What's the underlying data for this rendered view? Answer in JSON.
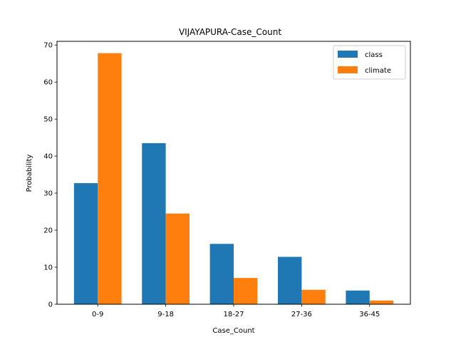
{
  "chart_data": {
    "type": "bar",
    "title": "VIJAYAPURA-Case_Count",
    "xlabel": "Case_Count",
    "ylabel": "Probability",
    "categories": [
      "0-9",
      "9-18",
      "18-27",
      "27-36",
      "36-45"
    ],
    "series": [
      {
        "name": "class",
        "color": "#1f77b4",
        "values": [
          32.7,
          43.5,
          16.3,
          12.8,
          3.7
        ]
      },
      {
        "name": "climate",
        "color": "#ff7f0e",
        "values": [
          67.8,
          24.5,
          7.1,
          3.9,
          1.0
        ]
      }
    ],
    "ylim": [
      0,
      71
    ],
    "yticks": [
      0,
      10,
      20,
      30,
      40,
      50,
      60,
      70
    ],
    "grid": false,
    "legend_position": "top-right"
  }
}
